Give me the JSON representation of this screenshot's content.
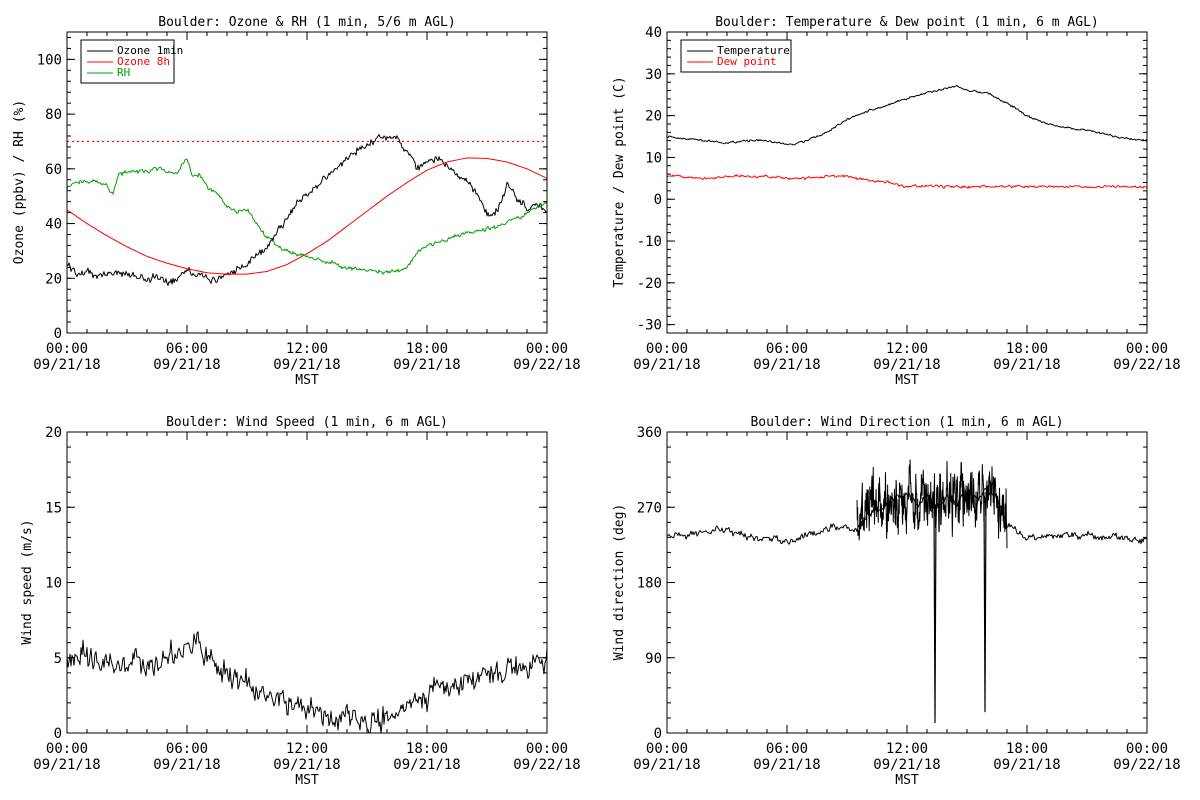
{
  "chart_data": [
    {
      "id": "ozone",
      "type": "line",
      "title": "Boulder: Ozone & RH (1 min, 5/6 m AGL)",
      "xlabel": "MST",
      "ylabel": "Ozone (ppbv) / RH (%)",
      "xlim": [
        0,
        24
      ],
      "ylim": [
        0,
        110
      ],
      "yticks": [
        0,
        20,
        40,
        60,
        80,
        100
      ],
      "xticks": [
        {
          "hour": 0,
          "time": "00:00",
          "date": "09/21/18"
        },
        {
          "hour": 6,
          "time": "06:00",
          "date": "09/21/18"
        },
        {
          "hour": 12,
          "time": "12:00",
          "date": "09/21/18"
        },
        {
          "hour": 18,
          "time": "18:00",
          "date": "09/21/18"
        },
        {
          "hour": 24,
          "time": "00:00",
          "date": "09/22/18"
        }
      ],
      "grid": false,
      "legend_position": "top-left",
      "reference_line": {
        "y": 70,
        "color": "#ff0000",
        "style": "dotted"
      },
      "series": [
        {
          "name": "Ozone 1min",
          "color": "#000000",
          "noise": 1.6,
          "x": [
            0,
            0.5,
            1,
            1.5,
            2,
            2.5,
            3,
            3.5,
            4,
            4.5,
            5,
            5.5,
            6,
            6.5,
            7,
            7.5,
            8,
            8.5,
            9,
            9.5,
            10,
            10.5,
            11,
            11.5,
            12,
            12.5,
            13,
            13.5,
            14,
            14.5,
            15,
            15.5,
            16,
            16.3,
            16.6,
            17,
            17.5,
            18,
            18.5,
            19,
            19.5,
            20,
            20.3,
            20.6,
            21,
            21.5,
            22,
            22.5,
            23,
            23.5,
            24
          ],
          "y": [
            25,
            22,
            22,
            21,
            22,
            22,
            21,
            21,
            20,
            20,
            19,
            20,
            24,
            21,
            20,
            19,
            22,
            23,
            25,
            28,
            32,
            37,
            42,
            47,
            51,
            54,
            57,
            60,
            64,
            67,
            69,
            71,
            72,
            72,
            70,
            66,
            60,
            62,
            64,
            62,
            58,
            55,
            52,
            50,
            43,
            45,
            54,
            49,
            46,
            47,
            44
          ]
        },
        {
          "name": "Ozone 8h",
          "color": "#ff0000",
          "noise": 0,
          "x": [
            0,
            1,
            2,
            3,
            4,
            5,
            6,
            7,
            8,
            9,
            10,
            11,
            12,
            13,
            14,
            15,
            16,
            17,
            18,
            19,
            20,
            21,
            22,
            23,
            24
          ],
          "y": [
            45,
            40,
            35.5,
            31.5,
            28,
            25.5,
            23.5,
            22,
            21.5,
            21.5,
            22.5,
            25,
            29,
            33.5,
            39,
            44.5,
            50,
            55,
            59.5,
            62.5,
            64,
            63.8,
            62.5,
            60,
            56.5
          ]
        },
        {
          "name": "RH",
          "color": "#00a000",
          "noise": 0.9,
          "x": [
            0,
            0.5,
            1,
            1.5,
            2,
            2.3,
            2.6,
            3,
            3.5,
            4,
            4.5,
            5,
            5.5,
            6,
            6.3,
            6.6,
            7,
            7.5,
            8,
            8.5,
            9,
            9.5,
            10,
            10.5,
            11,
            11.5,
            12,
            13,
            14,
            15,
            16,
            16.5,
            17,
            17.5,
            18,
            19,
            20,
            21,
            22,
            23,
            24
          ],
          "y": [
            53,
            55,
            56,
            55,
            54,
            51,
            58,
            59,
            59,
            59,
            60,
            59,
            58,
            64,
            57,
            58,
            53,
            51,
            46,
            44,
            45,
            40,
            35,
            32,
            30,
            29,
            28,
            26,
            24,
            23,
            22,
            23,
            24,
            29,
            32,
            34,
            37,
            38,
            40,
            44,
            48
          ]
        }
      ]
    },
    {
      "id": "temperature",
      "type": "line",
      "title": "Boulder: Temperature & Dew point (1 min, 6 m AGL)",
      "xlabel": "MST",
      "ylabel": "Temperature / Dew point (C)",
      "xlim": [
        0,
        24
      ],
      "ylim": [
        -32,
        40
      ],
      "yticks": [
        -30,
        -20,
        -10,
        0,
        10,
        20,
        30,
        40
      ],
      "xticks": [
        {
          "hour": 0,
          "time": "00:00",
          "date": "09/21/18"
        },
        {
          "hour": 6,
          "time": "06:00",
          "date": "09/21/18"
        },
        {
          "hour": 12,
          "time": "12:00",
          "date": "09/21/18"
        },
        {
          "hour": 18,
          "time": "18:00",
          "date": "09/21/18"
        },
        {
          "hour": 24,
          "time": "00:00",
          "date": "09/22/18"
        }
      ],
      "grid": false,
      "legend_position": "top-left",
      "series": [
        {
          "name": "Temperature",
          "color": "#000000",
          "noise": 0.3,
          "x": [
            0,
            1,
            2,
            3,
            4,
            5,
            6,
            7,
            8,
            9,
            10,
            11,
            12,
            13,
            14,
            14.5,
            15,
            16,
            17,
            18,
            19,
            20,
            21,
            22,
            23,
            24
          ],
          "y": [
            15,
            14.5,
            14,
            13.5,
            14,
            14,
            13,
            14,
            16,
            19,
            21,
            22.5,
            24,
            25.5,
            26.5,
            27,
            26,
            25.5,
            23,
            20,
            18,
            17,
            16.5,
            15.5,
            14.5,
            13.8
          ]
        },
        {
          "name": "Dew point",
          "color": "#ff0000",
          "noise": 0.35,
          "x": [
            0,
            1,
            2,
            3,
            4,
            5,
            6,
            7,
            8,
            9,
            10,
            11,
            12,
            13,
            14,
            15,
            16,
            17,
            18,
            19,
            20,
            21,
            22,
            23,
            24
          ],
          "y": [
            5.5,
            5.5,
            5,
            5.5,
            5.5,
            5.5,
            5,
            5,
            5.5,
            5.5,
            4.5,
            4,
            3,
            3.2,
            3,
            3,
            3,
            3,
            3,
            3,
            3,
            3,
            3,
            3,
            3
          ]
        }
      ]
    },
    {
      "id": "wind_speed",
      "type": "line",
      "title": "Boulder: Wind Speed (1 min, 6 m AGL)",
      "xlabel": "MST",
      "ylabel": "Wind speed (m/s)",
      "xlim": [
        0,
        24
      ],
      "ylim": [
        0,
        20
      ],
      "yticks": [
        0,
        5,
        10,
        15,
        20
      ],
      "xticks": [
        {
          "hour": 0,
          "time": "00:00",
          "date": "09/21/18"
        },
        {
          "hour": 6,
          "time": "06:00",
          "date": "09/21/18"
        },
        {
          "hour": 12,
          "time": "12:00",
          "date": "09/21/18"
        },
        {
          "hour": 18,
          "time": "18:00",
          "date": "09/21/18"
        },
        {
          "hour": 24,
          "time": "00:00",
          "date": "09/22/18"
        }
      ],
      "grid": false,
      "series": [
        {
          "name": "",
          "color": "#000000",
          "noise": 0.9,
          "x": [
            0,
            1,
            2,
            3,
            4,
            5,
            6,
            6.5,
            7,
            8,
            9,
            10,
            11,
            12,
            13,
            14,
            15,
            16,
            17,
            18,
            19,
            20,
            21,
            22,
            23,
            24
          ],
          "y": [
            5,
            5,
            4.5,
            4.5,
            4.5,
            5,
            6,
            6.2,
            5,
            4,
            3.2,
            2.5,
            2,
            1.5,
            1.2,
            1,
            1,
            1,
            1.8,
            2.5,
            3,
            3.5,
            4,
            4.2,
            4.5,
            5
          ]
        }
      ]
    },
    {
      "id": "wind_direction",
      "type": "line",
      "title": "Boulder: Wind Direction (1 min, 6 m AGL)",
      "xlabel": "MST",
      "ylabel": "Wind direction (deg)",
      "xlim": [
        0,
        24
      ],
      "ylim": [
        0,
        360
      ],
      "yticks": [
        0,
        90,
        180,
        270,
        360
      ],
      "xticks": [
        {
          "hour": 0,
          "time": "00:00",
          "date": "09/21/18"
        },
        {
          "hour": 6,
          "time": "06:00",
          "date": "09/21/18"
        },
        {
          "hour": 12,
          "time": "12:00",
          "date": "09/21/18"
        },
        {
          "hour": 18,
          "time": "18:00",
          "date": "09/21/18"
        },
        {
          "hour": 24,
          "time": "00:00",
          "date": "09/22/18"
        }
      ],
      "grid": false,
      "spikes": [
        {
          "x": 13.4,
          "y": 12
        },
        {
          "x": 15.9,
          "y": 25
        }
      ],
      "series": [
        {
          "name": "",
          "color": "#000000",
          "noise": 5,
          "x": [
            0,
            1,
            2,
            3,
            4,
            5,
            6,
            7,
            8,
            9,
            9.5,
            10,
            10.5,
            11,
            11.5,
            12,
            12.5,
            13,
            13.5,
            14,
            14.5,
            15,
            15.5,
            16,
            16.5,
            17,
            17.5,
            18,
            19,
            20,
            21,
            22,
            23,
            24
          ],
          "y": [
            235,
            237,
            240,
            242,
            235,
            232,
            228,
            238,
            245,
            248,
            240,
            260,
            270,
            275,
            280,
            285,
            275,
            280,
            270,
            285,
            275,
            290,
            280,
            290,
            280,
            250,
            240,
            235,
            235,
            238,
            235,
            235,
            233,
            232
          ]
        },
        {
          "name": "",
          "color": "#000000",
          "noise": 38,
          "x": [
            9.5,
            10,
            10.5,
            11,
            11.5,
            12,
            12.5,
            13,
            13.5,
            14,
            14.5,
            15,
            15.5,
            16,
            16.5,
            17
          ],
          "y": [
            255,
            265,
            272,
            275,
            280,
            282,
            278,
            282,
            275,
            285,
            280,
            288,
            282,
            290,
            278,
            255
          ]
        }
      ]
    }
  ]
}
